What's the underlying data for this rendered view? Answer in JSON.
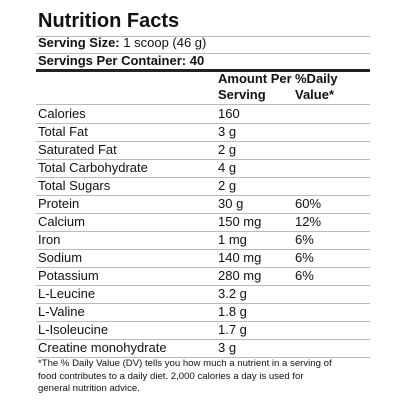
{
  "label": {
    "title": "Nutrition Facts",
    "serving_size": {
      "label": "Serving Size:",
      "value": "1 scoop (46 g)"
    },
    "servings_per_container": {
      "label": "Servings Per Container:",
      "value": "40"
    },
    "header": {
      "amount": "Amount Per Serving",
      "daily_value": "%Daily Value*"
    },
    "rows": [
      [
        "Calories",
        "160",
        null
      ],
      [
        "Total Fat",
        "3 g",
        null
      ],
      [
        "Saturated Fat",
        "2 g",
        null
      ],
      [
        "Total Carbohydrate",
        "4 g",
        null
      ],
      [
        "Total Sugars",
        "2 g",
        null
      ],
      [
        "Protein",
        "30 g",
        "60%"
      ],
      [
        "Calcium",
        "150 mg",
        "12%"
      ],
      [
        "Iron",
        "1 mg",
        "6%"
      ],
      [
        "Sodium",
        "140 mg",
        "6%"
      ],
      [
        "Potassium",
        "280 mg",
        "6%"
      ],
      [
        "L-Leucine",
        "3.2 g",
        null
      ],
      [
        "L-Valine",
        "1.8 g",
        null
      ],
      [
        "L-Isoleucine",
        "1.7 g",
        null
      ],
      [
        "Creatine monohydrate",
        "3 g",
        null
      ]
    ],
    "footnote": "*The % Daily Value (DV) tells you how much a nutrient in a serving of food contributes to a daily diet. 2,000 calories a day is used for general nutrition advice."
  }
}
